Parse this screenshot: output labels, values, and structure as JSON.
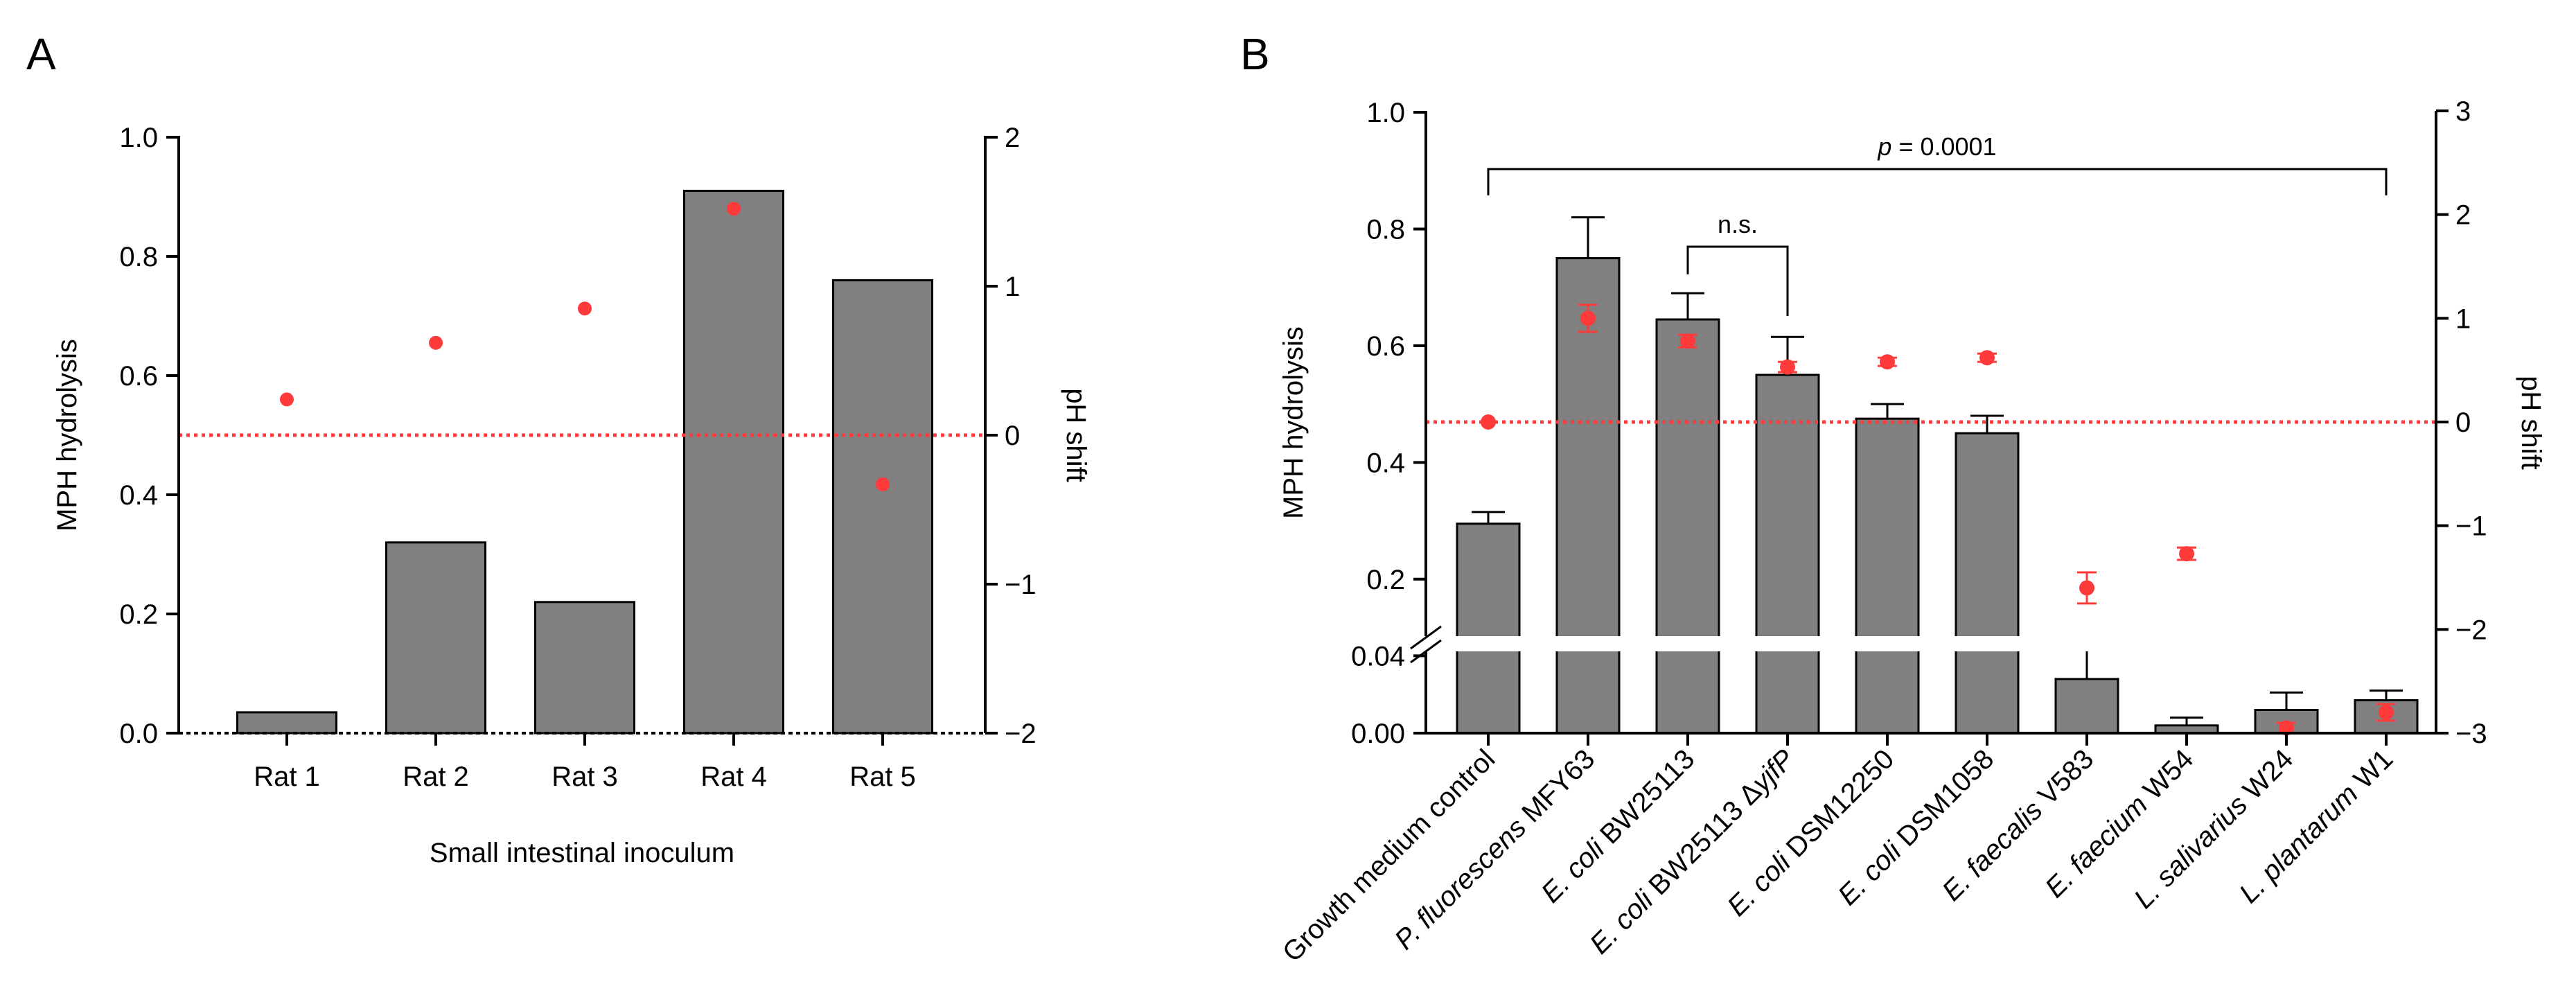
{
  "chart_data": [
    {
      "panel": "A",
      "type": "bar",
      "categories": [
        "Rat 1",
        "Rat 2",
        "Rat 3",
        "Rat 4",
        "Rat 5"
      ],
      "series": [
        {
          "name": "MPH hydrolysis",
          "axis": "left",
          "values": [
            0.035,
            0.32,
            0.22,
            0.91,
            0.76
          ],
          "color": "#808080"
        },
        {
          "name": "pH shift",
          "axis": "right",
          "type": "scatter",
          "values": [
            0.24,
            0.62,
            0.85,
            1.52,
            -0.33
          ],
          "color": "#ff3a3a"
        }
      ],
      "xlabel": "Small intestinal inoculum",
      "ylabel": "MPH hydrolysis",
      "ylabel_right": "pH shift",
      "ylim": [
        0,
        1.0
      ],
      "ylim_right": [
        -2,
        2
      ],
      "yticks": [
        {
          "value": 0.0,
          "label": "0.0"
        },
        {
          "value": 0.2,
          "label": "0.2"
        },
        {
          "value": 0.4,
          "label": "0.4"
        },
        {
          "value": 0.6,
          "label": "0.6"
        },
        {
          "value": 0.8,
          "label": "0.8"
        },
        {
          "value": 1.0,
          "label": "1.0"
        }
      ],
      "yticks_right": [
        {
          "value": 2,
          "label": "2"
        },
        {
          "value": 1,
          "label": "1"
        },
        {
          "value": 0,
          "label": "0"
        },
        {
          "value": -1,
          "label": "−1"
        },
        {
          "value": -2,
          "label": "−2"
        }
      ],
      "reference_line": {
        "axis": "right",
        "value": 0,
        "style": "dotted",
        "color": "#ff3a3a"
      }
    },
    {
      "panel": "B",
      "type": "bar",
      "categories": [
        {
          "italic": "",
          "normal": "Growth medium control"
        },
        {
          "italic": "P. fluorescens",
          "normal": " MFY63"
        },
        {
          "italic": "E. coli",
          "normal": " BW25113"
        },
        {
          "italic": "E. coli",
          "normal": " BW25113 Δ",
          "italic2": "yjfP"
        },
        {
          "italic": "E. coli",
          "normal": " DSM12250"
        },
        {
          "italic": "E. coli",
          "normal": " DSM1058"
        },
        {
          "italic": "E. faecalis",
          "normal": " V583"
        },
        {
          "italic": "E. faecium",
          "normal": " W54"
        },
        {
          "italic": "L. salivarius",
          "normal": " W24"
        },
        {
          "italic": "L. plantarum",
          "normal": " W1"
        }
      ],
      "series": [
        {
          "name": "MPH hydrolysis",
          "axis": "left",
          "values": [
            0.295,
            0.75,
            0.645,
            0.55,
            0.475,
            0.45,
            0.028,
            0.004,
            0.012,
            0.017
          ],
          "errors": [
            0.02,
            0.07,
            0.045,
            0.065,
            0.025,
            0.03,
            0.018,
            0.004,
            0.009,
            0.005
          ],
          "color": "#808080"
        },
        {
          "name": "pH shift",
          "axis": "right",
          "type": "scatter",
          "values": [
            0.0,
            1.0,
            0.78,
            0.53,
            0.58,
            0.62,
            -1.6,
            -1.27,
            -2.95,
            -2.8
          ],
          "errors": [
            0.0,
            0.13,
            0.06,
            0.05,
            0.04,
            0.04,
            0.15,
            0.06,
            0.05,
            0.08
          ],
          "color": "#ff3a3a"
        }
      ],
      "ylabel": "MPH hydrolysis",
      "ylabel_right": "pH shift",
      "ylim_upper": [
        0.1,
        1.0
      ],
      "ylim_lower": [
        0,
        0.05
      ],
      "ylim_right": [
        -3,
        3
      ],
      "yticks": [
        {
          "value": 0.0,
          "label": "0.00"
        },
        {
          "value": 0.04,
          "label": "0.04"
        },
        {
          "value": 0.2,
          "label": "0.2"
        },
        {
          "value": 0.4,
          "label": "0.4"
        },
        {
          "value": 0.6,
          "label": "0.6"
        },
        {
          "value": 0.8,
          "label": "0.8"
        },
        {
          "value": 1.0,
          "label": "1.0"
        }
      ],
      "yticks_right": [
        {
          "value": 3,
          "label": "3"
        },
        {
          "value": 2,
          "label": "2"
        },
        {
          "value": 1,
          "label": "1"
        },
        {
          "value": 0,
          "label": "0"
        },
        {
          "value": -1,
          "label": "−1"
        },
        {
          "value": -2,
          "label": "−2"
        },
        {
          "value": -3,
          "label": "−3"
        }
      ],
      "reference_line": {
        "axis": "right",
        "value": 0,
        "style": "dotted",
        "color": "#ff3a3a"
      },
      "brackets": [
        {
          "from": 0,
          "to": 9,
          "label_italic": "p",
          "label": " = 0.0001",
          "level": 0.94
        },
        {
          "from": 2,
          "to": 3,
          "label": "n.s.",
          "level": 0.74
        }
      ]
    }
  ]
}
